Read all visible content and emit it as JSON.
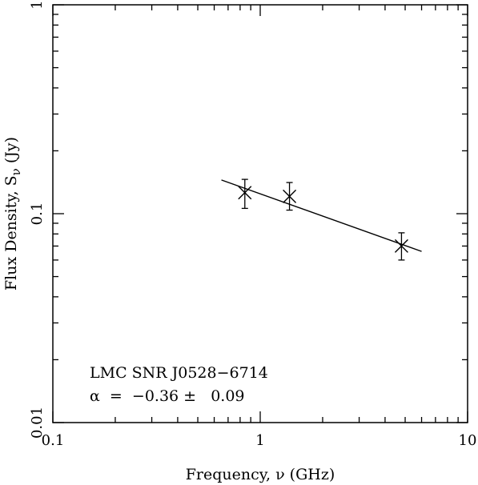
{
  "chart_data": {
    "type": "scatter",
    "x_scale": "log",
    "y_scale": "log",
    "xlim": [
      0.1,
      10
    ],
    "ylim": [
      0.01,
      1
    ],
    "xlabel": "Frequency, ν (GHz)",
    "ylabel_main": "Flux Density, S",
    "ylabel_sub": "ν",
    "ylabel_unit": " (Jy)",
    "x_tick_labels": [
      {
        "value": 0.1,
        "label": "0.1"
      },
      {
        "value": 1,
        "label": "1"
      },
      {
        "value": 10,
        "label": "10"
      }
    ],
    "y_tick_labels": [
      {
        "value": 0.01,
        "label": "0.01"
      },
      {
        "value": 0.1,
        "label": "0.1"
      },
      {
        "value": 1,
        "label": "1"
      }
    ],
    "points": [
      {
        "x": 0.843,
        "y": 0.126,
        "yerr_low": 0.106,
        "yerr_high": 0.146
      },
      {
        "x": 1.384,
        "y": 0.121,
        "yerr_low": 0.104,
        "yerr_high": 0.141
      },
      {
        "x": 4.8,
        "y": 0.07,
        "yerr_low": 0.06,
        "yerr_high": 0.081
      }
    ],
    "fit_line": {
      "x": [
        0.65,
        6.0
      ],
      "y": [
        0.145,
        0.066
      ]
    },
    "annotation_name": "LMC SNR J0528−6714",
    "annotation_alpha": "α  =  −0.36 ±   0.09",
    "grid": false
  }
}
